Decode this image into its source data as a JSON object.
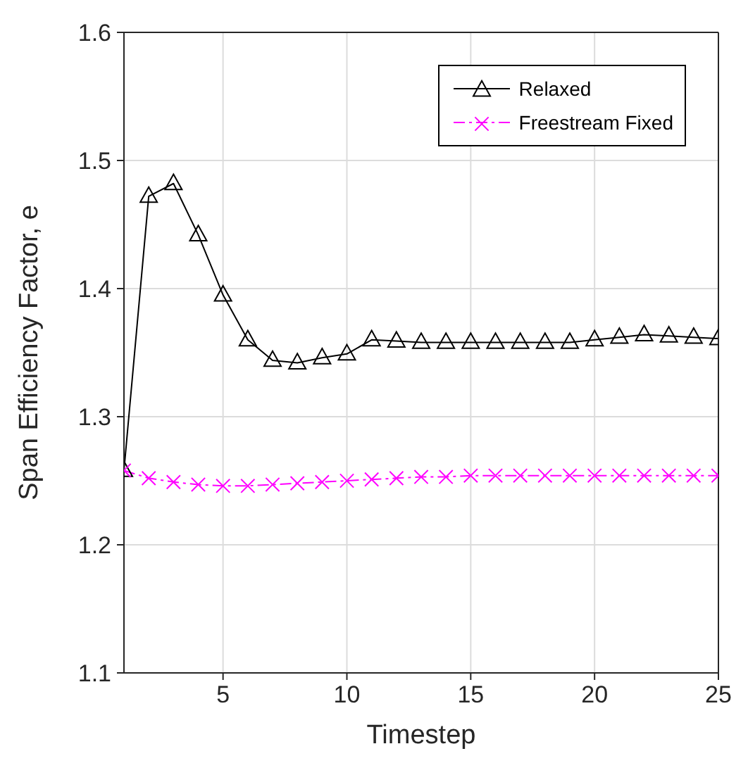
{
  "chart_data": {
    "type": "line",
    "xlabel": "Timestep",
    "ylabel": "Span Efficiency Factor, e",
    "x": [
      1,
      2,
      3,
      4,
      5,
      6,
      7,
      8,
      9,
      10,
      11,
      12,
      13,
      14,
      15,
      16,
      17,
      18,
      19,
      20,
      21,
      22,
      23,
      24,
      25
    ],
    "series": [
      {
        "name": "Relaxed",
        "color": "#000000",
        "marker": "triangle",
        "line_style": "solid",
        "values": [
          1.258,
          1.472,
          1.482,
          1.442,
          1.395,
          1.36,
          1.344,
          1.342,
          1.346,
          1.349,
          1.36,
          1.359,
          1.358,
          1.358,
          1.358,
          1.358,
          1.358,
          1.358,
          1.358,
          1.36,
          1.362,
          1.364,
          1.363,
          1.362,
          1.361
        ]
      },
      {
        "name": "Freestream Fixed",
        "color": "#ff00ff",
        "marker": "cross",
        "line_style": "dashdot",
        "values": [
          1.258,
          1.252,
          1.249,
          1.247,
          1.246,
          1.246,
          1.247,
          1.248,
          1.249,
          1.25,
          1.251,
          1.252,
          1.253,
          1.253,
          1.254,
          1.254,
          1.254,
          1.254,
          1.254,
          1.254,
          1.254,
          1.254,
          1.254,
          1.254,
          1.254
        ]
      }
    ],
    "xlim": [
      1,
      25
    ],
    "xticks": [
      5,
      10,
      15,
      20,
      25
    ],
    "ylim": [
      1.1,
      1.6
    ],
    "yticks": [
      1.1,
      1.2,
      1.3,
      1.4,
      1.5,
      1.6
    ],
    "grid": true,
    "legend": "top right"
  }
}
